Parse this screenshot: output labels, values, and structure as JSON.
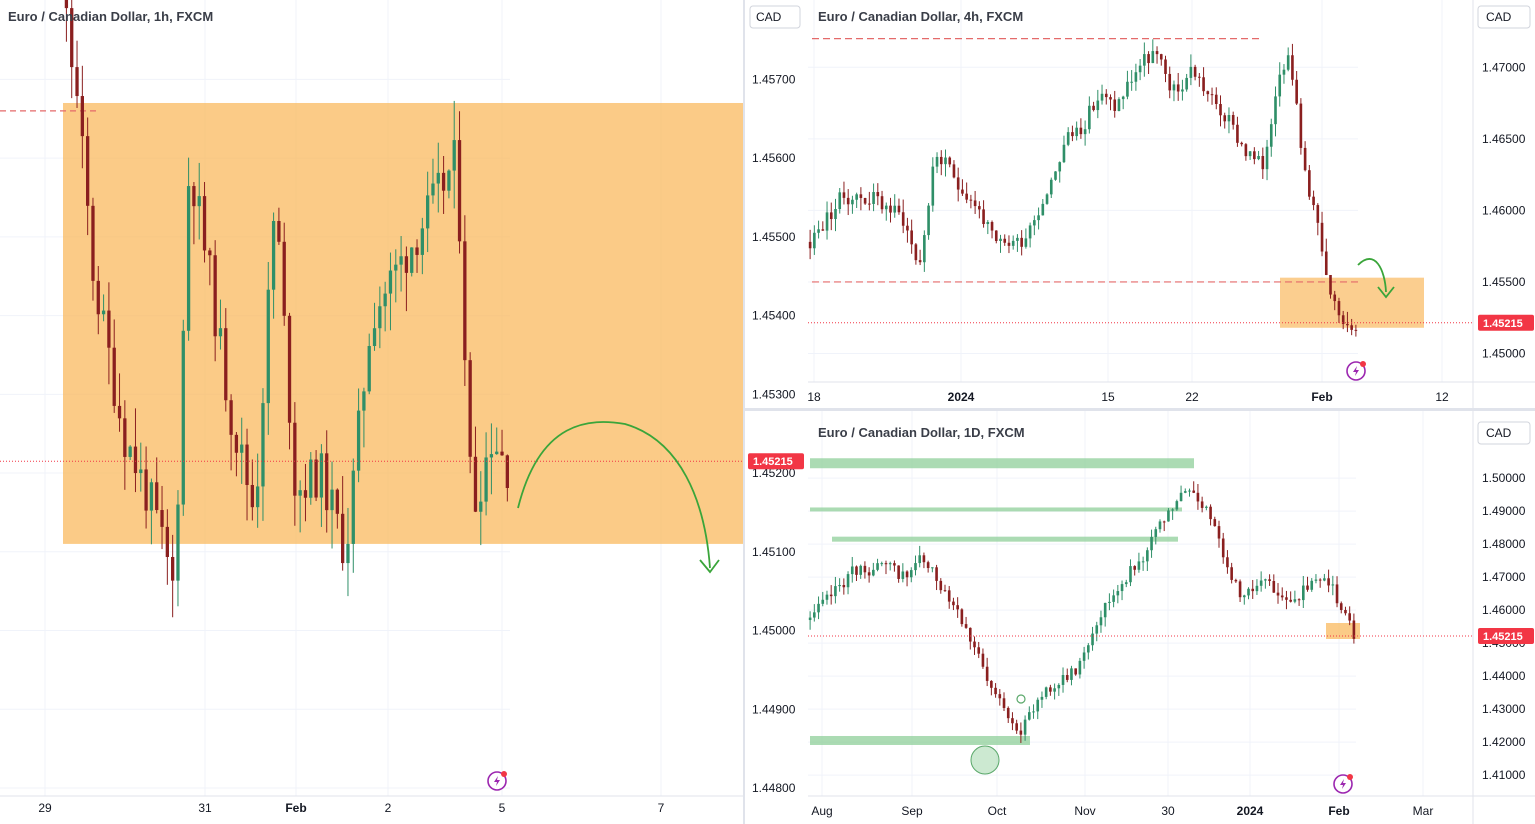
{
  "colors": {
    "up": "#2f8f68",
    "down": "#8a1f1f",
    "zone": "#f9b95f",
    "arrow": "#3aa53a",
    "resistance": "#e46a6a",
    "support_green": "#8fcf9a",
    "price_label": "#f23645",
    "grid": "#f0f3fa"
  },
  "chart_data": [
    {
      "id": "h1",
      "type": "candlestick",
      "title": "Euro / Canadian Dollar, 1h, FXCM",
      "currency": "CAD",
      "ylim": [
        1.448,
        1.4575
      ],
      "yticks": [
        "1.45700",
        "1.45600",
        "1.45500",
        "1.45400",
        "1.45300",
        "1.45200",
        "1.45100",
        "1.45000",
        "1.44900",
        "1.44800"
      ],
      "xticks": [
        "29",
        "31",
        "Feb",
        "2",
        "5",
        "7"
      ],
      "last_price": "1.45215",
      "zone": {
        "from_bar": 11,
        "to_bar": 150,
        "low": 1.4511,
        "high": 1.4567
      },
      "resistance_level": 1.4566,
      "bars": 96
    },
    {
      "id": "h4",
      "type": "candlestick",
      "title": "Euro / Canadian Dollar, 4h, FXCM",
      "currency": "CAD",
      "ylim": [
        1.4485,
        1.474
      ],
      "yticks": [
        "1.47000",
        "1.46500",
        "1.46000",
        "1.45500",
        "1.45000"
      ],
      "xticks": [
        "18",
        "2024",
        "15",
        "22",
        "Feb",
        "12"
      ],
      "last_price": "1.45215",
      "zone": {
        "low": 1.4518,
        "high": 1.4553
      },
      "resistance_levels": [
        1.472,
        1.455
      ],
      "bars": 130
    },
    {
      "id": "d1",
      "type": "candlestick",
      "title": "Euro / Canadian Dollar, 1D, FXCM",
      "currency": "CAD",
      "ylim": [
        1.4055,
        1.507
      ],
      "yticks": [
        "1.50000",
        "1.49000",
        "1.48000",
        "1.47000",
        "1.46000",
        "1.45000",
        "1.44000",
        "1.43000",
        "1.42000",
        "1.41000"
      ],
      "xticks": [
        "Aug",
        "Sep",
        "Oct",
        "Nov",
        "30",
        "2024",
        "Feb",
        "Mar"
      ],
      "last_price": "1.45215",
      "support_levels": [
        1.4205,
        1.4815,
        1.4905,
        1.5045
      ],
      "bars": 130
    }
  ]
}
